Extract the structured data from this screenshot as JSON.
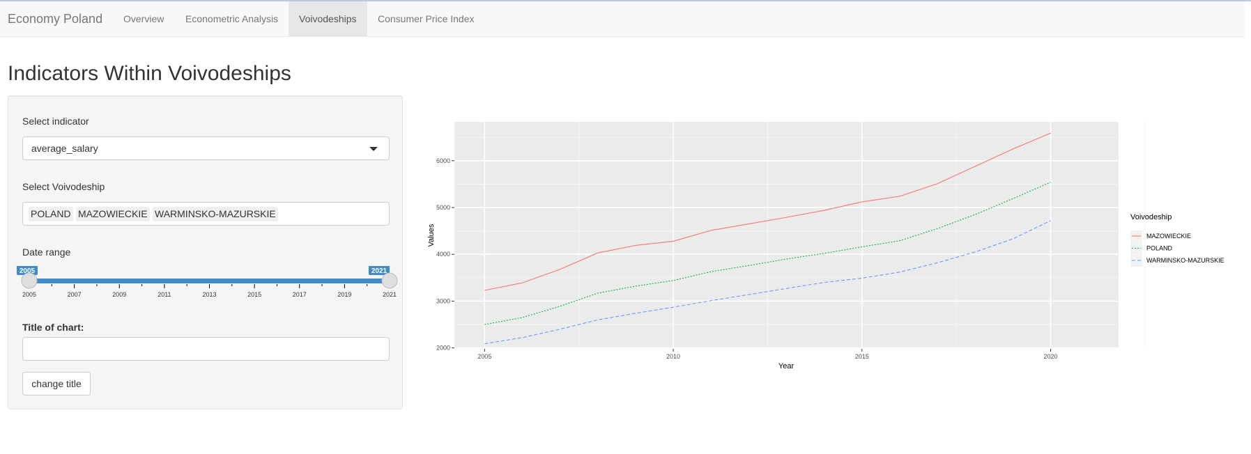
{
  "navbar": {
    "brand": "Economy Poland",
    "tabs": [
      {
        "label": "Overview",
        "active": false
      },
      {
        "label": "Econometric Analysis",
        "active": false
      },
      {
        "label": "Voivodeships",
        "active": true
      },
      {
        "label": "Consumer Price Index",
        "active": false
      }
    ]
  },
  "page": {
    "title": "Indicators Within Voivodeships"
  },
  "sidebar": {
    "indicator_label": "Select indicator",
    "indicator_value": "average_salary",
    "voivodeship_label": "Select Voivodeship",
    "voivodeship_selected": [
      "POLAND",
      "MAZOWIECKIE",
      "WARMINSKO-MAZURSKIE"
    ],
    "date_range_label": "Date range",
    "slider": {
      "min": 2005,
      "max": 2021,
      "from": 2005,
      "to": 2021,
      "from_label": "2005",
      "to_label": "2021",
      "ticks": [
        "2005",
        "2007",
        "2009",
        "2011",
        "2013",
        "2015",
        "2017",
        "2019",
        "2021"
      ]
    },
    "title_label": "Title of chart:",
    "title_value": "",
    "change_title_button": "change title"
  },
  "colors": {
    "accent": "#428bca",
    "mazowieckie": "#F8766D",
    "poland": "#00BA38",
    "warminsko": "#619CFF",
    "panel_bg": "#EBEBEB"
  },
  "chart_data": {
    "type": "line",
    "title": "",
    "xlabel": "Year",
    "ylabel": "Values",
    "xlim": [
      2004.2,
      2021.8
    ],
    "ylim": [
      1980,
      6830
    ],
    "x_ticks": [
      2005,
      2010,
      2015,
      2020
    ],
    "y_ticks": [
      2000,
      3000,
      4000,
      5000,
      6000
    ],
    "grid": true,
    "legend_title": "Voivodeship",
    "legend_position": "right",
    "x": [
      2005,
      2006,
      2007,
      2008,
      2009,
      2010,
      2011,
      2012,
      2013,
      2014,
      2015,
      2016,
      2017,
      2018,
      2019,
      2020
    ],
    "series": [
      {
        "name": "MAZOWIECKIE",
        "style": "solid",
        "values": [
          3230,
          3390,
          3680,
          4030,
          4190,
          4280,
          4510,
          4650,
          4790,
          4940,
          5120,
          5240,
          5510,
          5880,
          6250,
          6590
        ]
      },
      {
        "name": "POLAND",
        "style": "dotted",
        "values": [
          2500,
          2650,
          2890,
          3170,
          3320,
          3440,
          3630,
          3760,
          3900,
          4020,
          4160,
          4290,
          4550,
          4850,
          5190,
          5540
        ]
      },
      {
        "name": "WARMINSKO-MAZURSKIE",
        "style": "dashed",
        "values": [
          2090,
          2220,
          2400,
          2600,
          2740,
          2870,
          3010,
          3140,
          3270,
          3400,
          3490,
          3620,
          3820,
          4050,
          4330,
          4720
        ]
      }
    ]
  }
}
